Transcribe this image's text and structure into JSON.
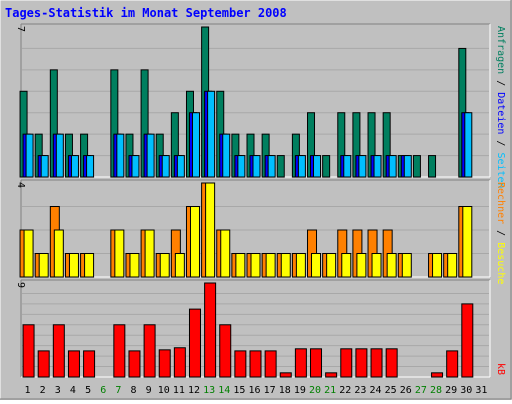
{
  "chart_data": {
    "type": "bar",
    "title": "Tages-Statistik im Monat September 2008",
    "x": [
      "1",
      "2",
      "3",
      "4",
      "5",
      "6",
      "7",
      "8",
      "9",
      "10",
      "11",
      "12",
      "13",
      "14",
      "15",
      "16",
      "17",
      "18",
      "19",
      "20",
      "21",
      "22",
      "23",
      "24",
      "25",
      "26",
      "27",
      "28",
      "29",
      "30",
      "31"
    ],
    "weekend_days": [
      "6",
      "7",
      "13",
      "14",
      "20",
      "21",
      "27",
      "28"
    ],
    "grid": true,
    "panels": [
      {
        "name": "requests-pages-files",
        "ymax_label": "7",
        "ylim": [
          0,
          7
        ],
        "right_label_parts": [
          {
            "text": "Anfragen",
            "color": "#007f5f"
          },
          {
            "text": " / ",
            "color": "#000000"
          },
          {
            "text": "Dateien",
            "color": "#0000ff"
          },
          {
            "text": " / ",
            "color": "#000000"
          },
          {
            "text": "Seiten",
            "color": "#00bfff"
          }
        ],
        "series": [
          {
            "name": "Anfragen",
            "color": "#007f5f",
            "values": [
              4,
              2,
              5,
              2,
              2,
              0,
              5,
              2,
              5,
              2,
              3,
              4,
              7,
              4,
              2,
              2,
              2,
              1,
              2,
              3,
              1,
              3,
              3,
              3,
              3,
              1,
              1,
              1,
              0,
              6,
              0
            ]
          },
          {
            "name": "Dateien",
            "color": "#0000ff",
            "values": [
              2,
              1,
              2,
              1,
              1,
              0,
              2,
              1,
              2,
              1,
              1,
              3,
              4,
              2,
              1,
              1,
              1,
              0,
              1,
              1,
              0,
              1,
              1,
              1,
              1,
              1,
              0,
              0,
              0,
              3,
              0
            ]
          },
          {
            "name": "Seiten",
            "color": "#00bfff",
            "values": [
              2,
              1,
              2,
              1,
              1,
              0,
              2,
              1,
              2,
              1,
              1,
              3,
              4,
              2,
              1,
              1,
              1,
              0,
              1,
              1,
              0,
              1,
              1,
              1,
              1,
              1,
              0,
              0,
              0,
              3,
              0
            ]
          }
        ]
      },
      {
        "name": "visits-sites",
        "ymax_label": "4",
        "ylim": [
          0,
          4
        ],
        "right_label_parts": [
          {
            "text": "Rechner",
            "color": "#ff8000"
          },
          {
            "text": " / ",
            "color": "#000000"
          },
          {
            "text": "Besuche",
            "color": "#ffff00"
          }
        ],
        "series": [
          {
            "name": "Rechner",
            "color": "#ff8000",
            "values": [
              2,
              1,
              3,
              1,
              1,
              0,
              2,
              1,
              2,
              1,
              2,
              3,
              4,
              2,
              1,
              1,
              1,
              1,
              1,
              2,
              1,
              2,
              2,
              2,
              2,
              1,
              0,
              1,
              1,
              3,
              0
            ]
          },
          {
            "name": "Besuche",
            "color": "#ffff00",
            "values": [
              2,
              1,
              2,
              1,
              1,
              0,
              2,
              1,
              2,
              1,
              1,
              3,
              4,
              2,
              1,
              1,
              1,
              1,
              1,
              1,
              1,
              1,
              1,
              1,
              1,
              1,
              0,
              1,
              1,
              3,
              0
            ]
          }
        ]
      },
      {
        "name": "kbytes",
        "ymax_label": "9",
        "ylim": [
          0,
          9
        ],
        "right_label_parts": [
          {
            "text": "kB",
            "color": "#ff0000"
          }
        ],
        "series": [
          {
            "name": "kB",
            "color": "#ff0000",
            "values": [
              5,
              2.5,
              5,
              2.5,
              2.5,
              0,
              5,
              2.5,
              5,
              2.6,
              2.8,
              6.5,
              9,
              5,
              2.5,
              2.5,
              2.5,
              0.4,
              2.7,
              2.7,
              0.4,
              2.7,
              2.7,
              2.7,
              2.7,
              0,
              0,
              0.4,
              2.5,
              7,
              0
            ]
          }
        ]
      }
    ],
    "colors": {
      "background": "#c0c0c0",
      "plot_background": "#c0c0c0",
      "title": "#0000ff",
      "weekday_label": "#000000",
      "weekend_label": "#007f00"
    }
  }
}
